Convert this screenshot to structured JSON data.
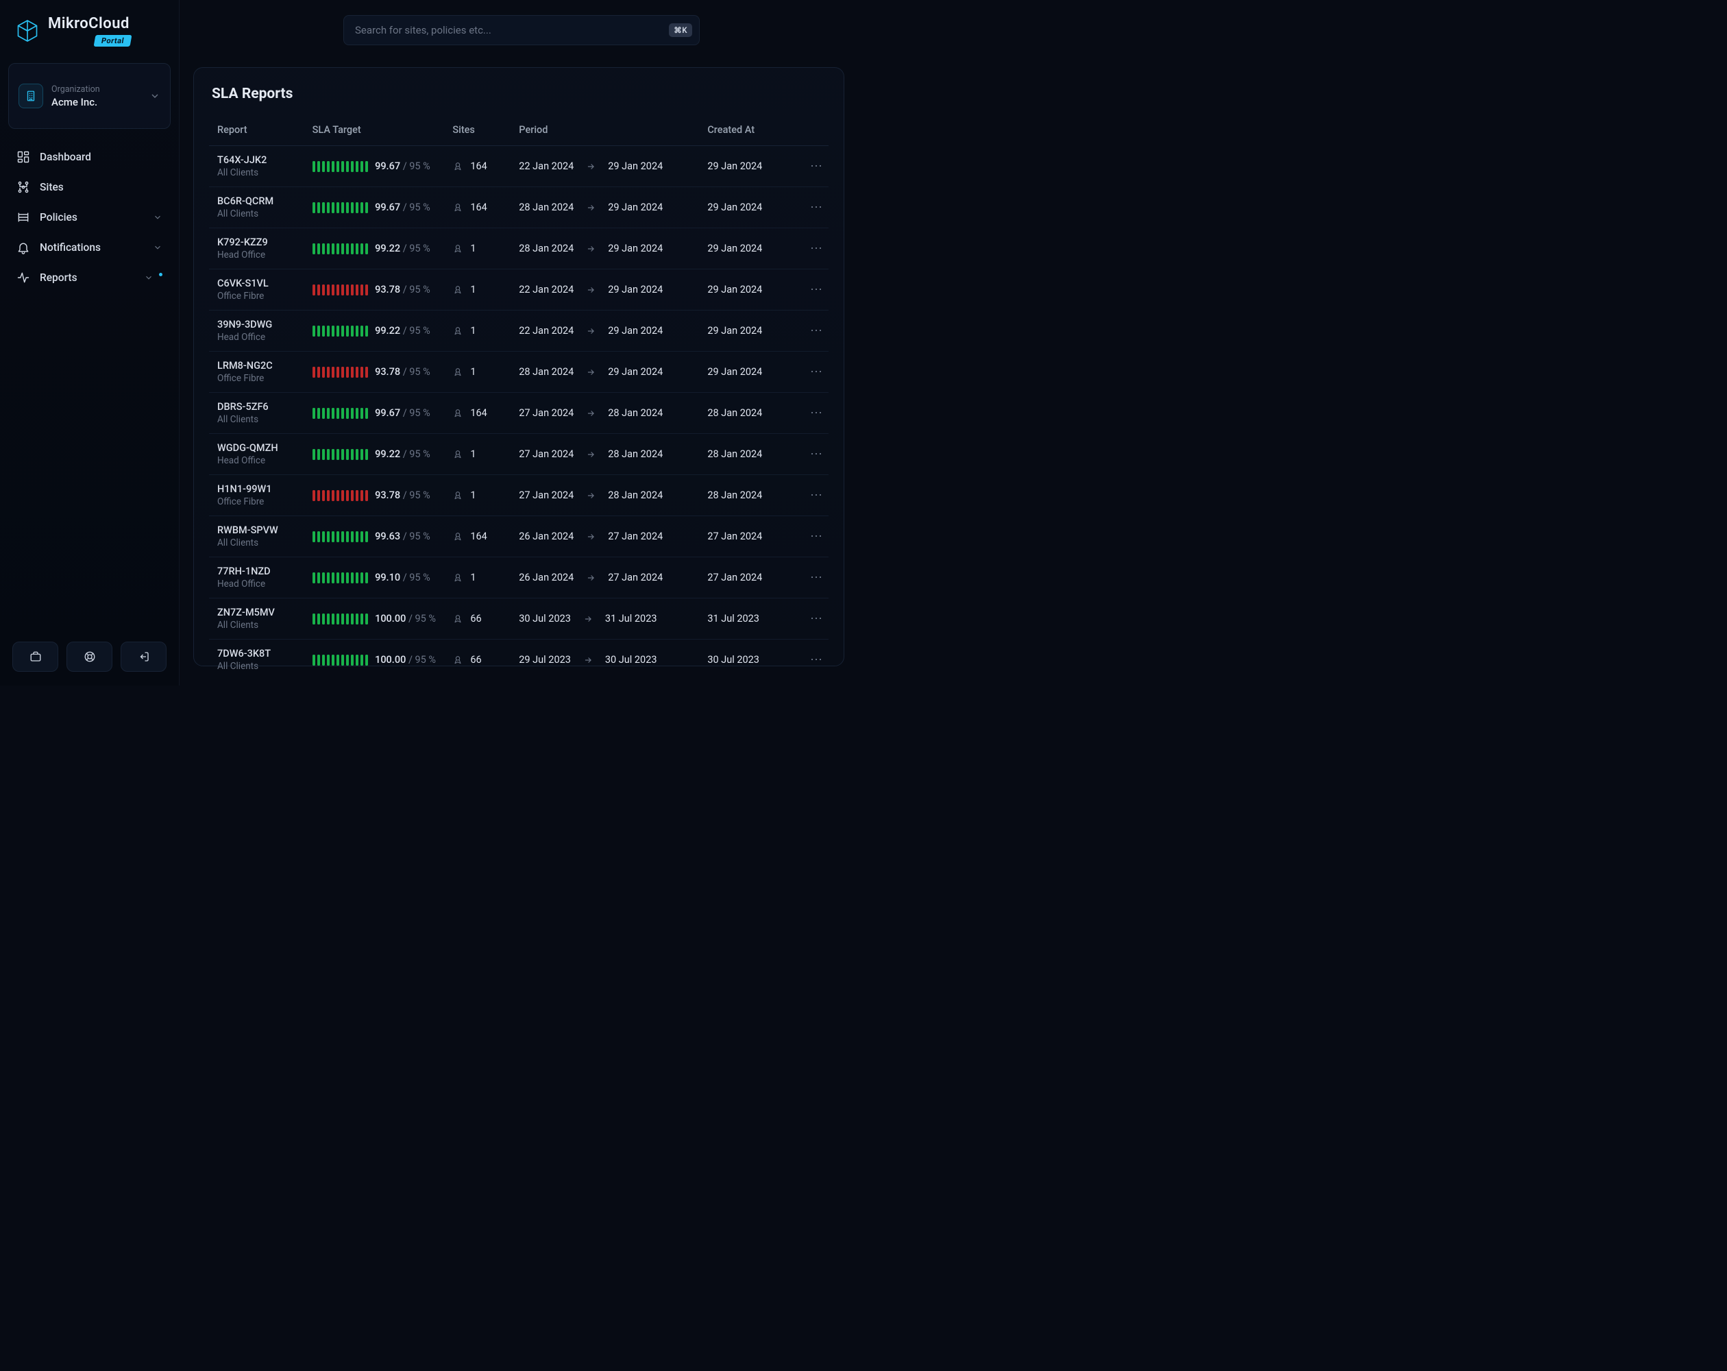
{
  "brand": {
    "name": "MikroCloud",
    "badge": "Portal"
  },
  "search": {
    "placeholder": "Search for sites, policies etc...",
    "shortcut": "⌘K"
  },
  "org": {
    "label": "Organization",
    "name": "Acme Inc."
  },
  "nav": {
    "items": [
      {
        "label": "Dashboard",
        "icon": "dashboard",
        "chevron": false,
        "dot": false
      },
      {
        "label": "Sites",
        "icon": "sites",
        "chevron": false,
        "dot": false
      },
      {
        "label": "Policies",
        "icon": "policies",
        "chevron": true,
        "dot": false
      },
      {
        "label": "Notifications",
        "icon": "bell",
        "chevron": true,
        "dot": false
      },
      {
        "label": "Reports",
        "icon": "activity",
        "chevron": true,
        "dot": true
      }
    ]
  },
  "page": {
    "title": "SLA Reports"
  },
  "table": {
    "columns": [
      "Report",
      "SLA Target",
      "Sites",
      "Period",
      "Created At"
    ],
    "bar_count": 12,
    "colors": {
      "ok": "#18b34a",
      "fail": "#c02828"
    },
    "rows": [
      {
        "id": "T64X-JJK2",
        "sub": "All Clients",
        "sla": "99.67",
        "target": "95 %",
        "ok": true,
        "sites": "164",
        "from": "22 Jan 2024",
        "to": "29 Jan 2024",
        "created": "29 Jan 2024"
      },
      {
        "id": "BC6R-QCRM",
        "sub": "All Clients",
        "sla": "99.67",
        "target": "95 %",
        "ok": true,
        "sites": "164",
        "from": "28 Jan 2024",
        "to": "29 Jan 2024",
        "created": "29 Jan 2024"
      },
      {
        "id": "K792-KZZ9",
        "sub": "Head Office",
        "sla": "99.22",
        "target": "95 %",
        "ok": true,
        "sites": "1",
        "from": "28 Jan 2024",
        "to": "29 Jan 2024",
        "created": "29 Jan 2024"
      },
      {
        "id": "C6VK-S1VL",
        "sub": "Office Fibre",
        "sla": "93.78",
        "target": "95 %",
        "ok": false,
        "sites": "1",
        "from": "22 Jan 2024",
        "to": "29 Jan 2024",
        "created": "29 Jan 2024"
      },
      {
        "id": "39N9-3DWG",
        "sub": "Head Office",
        "sla": "99.22",
        "target": "95 %",
        "ok": true,
        "sites": "1",
        "from": "22 Jan 2024",
        "to": "29 Jan 2024",
        "created": "29 Jan 2024"
      },
      {
        "id": "LRM8-NG2C",
        "sub": "Office Fibre",
        "sla": "93.78",
        "target": "95 %",
        "ok": false,
        "sites": "1",
        "from": "28 Jan 2024",
        "to": "29 Jan 2024",
        "created": "29 Jan 2024"
      },
      {
        "id": "DBRS-5ZF6",
        "sub": "All Clients",
        "sla": "99.67",
        "target": "95 %",
        "ok": true,
        "sites": "164",
        "from": "27 Jan 2024",
        "to": "28 Jan 2024",
        "created": "28 Jan 2024"
      },
      {
        "id": "WGDG-QMZH",
        "sub": "Head Office",
        "sla": "99.22",
        "target": "95 %",
        "ok": true,
        "sites": "1",
        "from": "27 Jan 2024",
        "to": "28 Jan 2024",
        "created": "28 Jan 2024"
      },
      {
        "id": "H1N1-99W1",
        "sub": "Office Fibre",
        "sla": "93.78",
        "target": "95 %",
        "ok": false,
        "sites": "1",
        "from": "27 Jan 2024",
        "to": "28 Jan 2024",
        "created": "28 Jan 2024"
      },
      {
        "id": "RWBM-SPVW",
        "sub": "All Clients",
        "sla": "99.63",
        "target": "95 %",
        "ok": true,
        "sites": "164",
        "from": "26 Jan 2024",
        "to": "27 Jan 2024",
        "created": "27 Jan 2024"
      },
      {
        "id": "77RH-1NZD",
        "sub": "Head Office",
        "sla": "99.10",
        "target": "95 %",
        "ok": true,
        "sites": "1",
        "from": "26 Jan 2024",
        "to": "27 Jan 2024",
        "created": "27 Jan 2024"
      },
      {
        "id": "ZN7Z-M5MV",
        "sub": "All Clients",
        "sla": "100.00",
        "target": "95 %",
        "ok": true,
        "sites": "66",
        "from": "30 Jul 2023",
        "to": "31 Jul 2023",
        "created": "31 Jul 2023"
      },
      {
        "id": "7DW6-3K8T",
        "sub": "All Clients",
        "sla": "100.00",
        "target": "95 %",
        "ok": true,
        "sites": "66",
        "from": "29 Jul 2023",
        "to": "30 Jul 2023",
        "created": "30 Jul 2023"
      }
    ]
  }
}
